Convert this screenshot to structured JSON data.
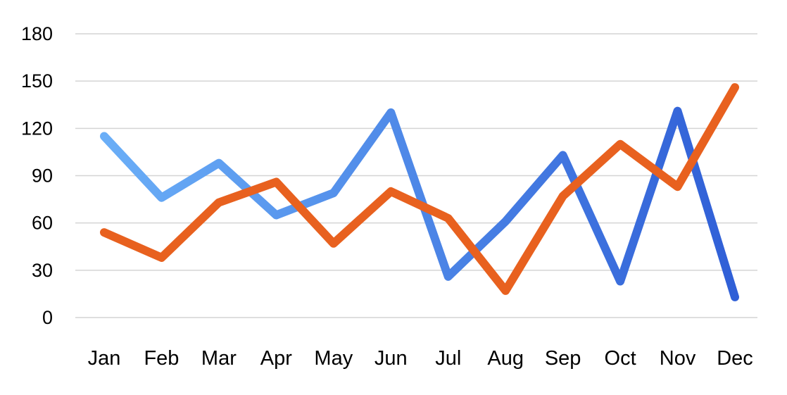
{
  "chart_data": {
    "type": "line",
    "categories": [
      "Jan",
      "Feb",
      "Mar",
      "Apr",
      "May",
      "Jun",
      "Jul",
      "Aug",
      "Sep",
      "Oct",
      "Nov",
      "Dec"
    ],
    "yticks": [
      0,
      30,
      60,
      90,
      120,
      150,
      180
    ],
    "ylim": [
      0,
      180
    ],
    "grid": true,
    "legend": "none",
    "series": [
      {
        "values": [
          115,
          76,
          98,
          65,
          79,
          130,
          26,
          61,
          103,
          23,
          131,
          13
        ],
        "gradient": [
          "#6aaef7",
          "#2f5ed6"
        ]
      },
      {
        "values": [
          54,
          38,
          73,
          86,
          47,
          80,
          63,
          17,
          77,
          110,
          83,
          146
        ],
        "color": "#e8611f"
      }
    ]
  }
}
